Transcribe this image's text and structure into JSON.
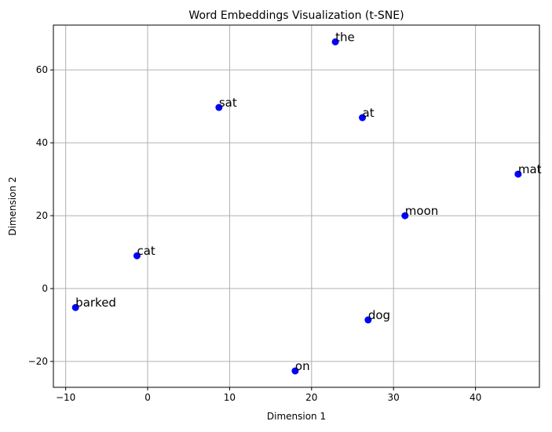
{
  "chart_data": {
    "type": "scatter",
    "title": "Word Embeddings Visualization (t-SNE)",
    "xlabel": "Dimension 1",
    "ylabel": "Dimension 2",
    "xlim": [
      -11.5,
      47.8
    ],
    "ylim": [
      -27.1,
      72.3
    ],
    "xticks": [
      -10,
      0,
      10,
      20,
      30,
      40
    ],
    "yticks": [
      -20,
      0,
      20,
      40,
      60
    ],
    "xtick_labels": [
      "−10",
      "0",
      "10",
      "20",
      "30",
      "40"
    ],
    "ytick_labels": [
      "−20",
      "0",
      "20",
      "40",
      "60"
    ],
    "grid": true,
    "point_color": "#0000ff",
    "grid_color": "#b0b0b0",
    "points": [
      {
        "label": "the",
        "x": 22.9,
        "y": 67.7
      },
      {
        "label": "sat",
        "x": 8.7,
        "y": 49.7
      },
      {
        "label": "at",
        "x": 26.2,
        "y": 46.9
      },
      {
        "label": "mat",
        "x": 45.2,
        "y": 31.4
      },
      {
        "label": "moon",
        "x": 31.4,
        "y": 20.0
      },
      {
        "label": "cat",
        "x": -1.3,
        "y": 9.0
      },
      {
        "label": "barked",
        "x": -8.8,
        "y": -5.2
      },
      {
        "label": "dog",
        "x": 26.9,
        "y": -8.6
      },
      {
        "label": "on",
        "x": 18.0,
        "y": -22.6
      }
    ]
  }
}
